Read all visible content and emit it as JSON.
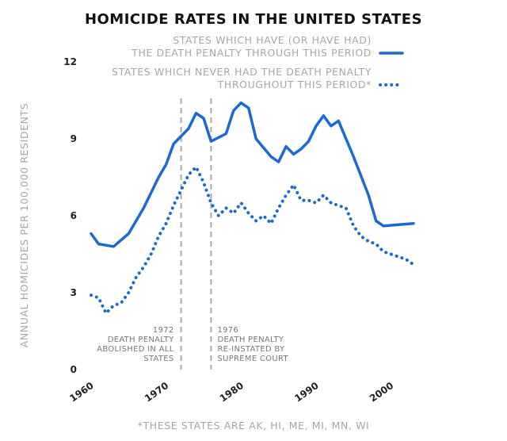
{
  "chart_data": {
    "type": "line",
    "title": "HOMICIDE RATES IN THE UNITED STATES",
    "ylabel": "ANNUAL HOMICIDES PER 100,000 RESIDENTS",
    "xlabel": "",
    "xlim": [
      1960,
      2003
    ],
    "ylim": [
      0,
      12
    ],
    "x_ticks": [
      "1960",
      "1970",
      "1980",
      "1990",
      "2000"
    ],
    "y_ticks": [
      "0",
      "3",
      "6",
      "9",
      "12"
    ],
    "footnote": "*THESE STATES ARE AK, HI, ME, MI, MN, WI",
    "colors": {
      "series": "#1a6ad4",
      "dashed_lines": "#aaaaaa"
    },
    "legend_position": "top-right",
    "series": [
      {
        "name_lines": [
          "STATES WHICH HAVE (OR HAVE HAD)",
          "THE DEATH PENALTY THROUGH THIS PERIOD"
        ],
        "style": "solid",
        "x": [
          1960,
          1961,
          1963,
          1965,
          1967,
          1969,
          1970,
          1971,
          1973,
          1974,
          1975,
          1976,
          1978,
          1979,
          1980,
          1981,
          1982,
          1984,
          1985,
          1986,
          1987,
          1988,
          1989,
          1990,
          1991,
          1992,
          1993,
          1995,
          1997,
          1998,
          1999,
          2003
        ],
        "values": [
          5.3,
          4.9,
          4.8,
          5.3,
          6.3,
          7.5,
          8.0,
          8.8,
          9.4,
          10.0,
          9.8,
          8.9,
          9.2,
          10.1,
          10.4,
          10.2,
          9.0,
          8.3,
          8.1,
          8.7,
          8.4,
          8.6,
          8.9,
          9.5,
          9.9,
          9.5,
          9.7,
          8.3,
          6.8,
          5.8,
          5.6,
          5.7
        ]
      },
      {
        "name_lines": [
          "STATES WHICH NEVER HAD THE DEATH PENALTY",
          "THROUGHOUT THIS PERIOD*"
        ],
        "style": "dotted",
        "x": [
          1960,
          1961,
          1962,
          1963,
          1964,
          1965,
          1966,
          1967,
          1968,
          1969,
          1970,
          1971,
          1972,
          1973,
          1974,
          1975,
          1976,
          1977,
          1978,
          1979,
          1980,
          1981,
          1982,
          1983,
          1984,
          1985,
          1986,
          1987,
          1988,
          1989,
          1990,
          1991,
          1992,
          1993,
          1994,
          1995,
          1996,
          1997,
          1998,
          1999,
          2000,
          2001,
          2002,
          2003
        ],
        "values": [
          2.9,
          2.8,
          2.2,
          2.5,
          2.6,
          3.0,
          3.6,
          4.0,
          4.5,
          5.2,
          5.7,
          6.4,
          7.0,
          7.6,
          7.9,
          7.3,
          6.5,
          6.0,
          6.3,
          6.1,
          6.5,
          6.1,
          5.8,
          6.0,
          5.7,
          6.3,
          6.8,
          7.2,
          6.6,
          6.6,
          6.5,
          6.8,
          6.5,
          6.4,
          6.3,
          5.6,
          5.2,
          5.0,
          4.9,
          4.6,
          4.5,
          4.4,
          4.3,
          4.1
        ]
      }
    ],
    "reference_lines": [
      {
        "x": 1972,
        "lines": [
          "1972",
          "DEATH PENALTY",
          "ABOLISHED IN ALL",
          "STATES"
        ],
        "align": "left"
      },
      {
        "x": 1976,
        "lines": [
          "1976",
          "DEATH PENALTY",
          "RE-INSTATED BY",
          "SUPREME COURT"
        ],
        "align": "right"
      }
    ]
  }
}
